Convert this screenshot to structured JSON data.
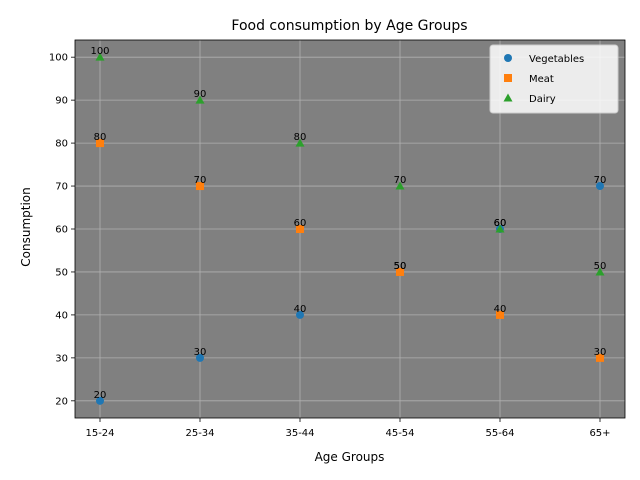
{
  "chart_data": {
    "type": "scatter",
    "title": "Food consumption by Age Groups",
    "xlabel": "Age Groups",
    "ylabel": "Consumption",
    "categories": [
      "15-24",
      "25-34",
      "35-44",
      "45-54",
      "55-64",
      "65+"
    ],
    "ylim": [
      16,
      104
    ],
    "yticks": [
      20,
      30,
      40,
      50,
      60,
      70,
      80,
      90,
      100
    ],
    "grid": true,
    "legend_position": "top-right",
    "plot_background": "#808080",
    "series": [
      {
        "name": "Vegetables",
        "marker": "circle",
        "color": "#1f77b4",
        "values": [
          20,
          30,
          40,
          50,
          60,
          70
        ]
      },
      {
        "name": "Meat",
        "marker": "square",
        "color": "#ff7f0e",
        "values": [
          80,
          70,
          60,
          50,
          40,
          30
        ]
      },
      {
        "name": "Dairy",
        "marker": "triangle",
        "color": "#2ca02c",
        "values": [
          100,
          90,
          80,
          70,
          60,
          50
        ]
      }
    ]
  }
}
